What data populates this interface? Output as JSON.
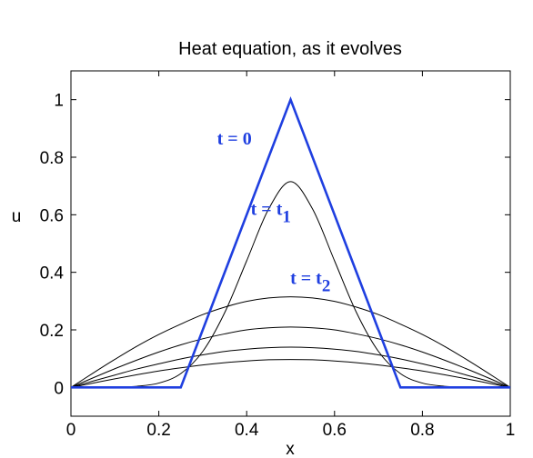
{
  "chart_data": {
    "type": "line",
    "title": "Heat equation, as it evolves",
    "xlabel": "x",
    "ylabel": "u",
    "xlim": [
      0,
      1
    ],
    "ylim": [
      -0.1,
      1.1
    ],
    "xticks": [
      0,
      0.2,
      0.4,
      0.6,
      0.8,
      1
    ],
    "yticks": [
      0,
      0.2,
      0.4,
      0.6,
      0.8,
      1
    ],
    "xtick_labels": [
      "0",
      "0.2",
      "0.4",
      "0.6",
      "0.8",
      "1"
    ],
    "ytick_labels": [
      "0",
      "0.2",
      "0.4",
      "0.6",
      "0.8",
      "1"
    ],
    "grid": false,
    "series": [
      {
        "color": "#1f3fe0",
        "x": [
          0,
          0.25,
          0.5,
          0.75,
          1
        ],
        "y": [
          0,
          0,
          1,
          0,
          0
        ]
      },
      {
        "color": "#000000",
        "x": [
          0,
          0.05,
          0.1,
          0.15,
          0.2,
          0.25,
          0.3,
          0.35,
          0.4,
          0.45,
          0.5,
          0.55,
          0.6,
          0.65,
          0.7,
          0.75,
          0.8,
          0.85,
          0.9,
          0.95,
          1
        ],
        "y": [
          0,
          0.0,
          0.001,
          0.004,
          0.015,
          0.048,
          0.125,
          0.26,
          0.44,
          0.62,
          0.715,
          0.62,
          0.44,
          0.26,
          0.125,
          0.048,
          0.015,
          0.004,
          0.001,
          0.0,
          0
        ]
      },
      {
        "color": "#000000",
        "x": [
          0,
          0.05,
          0.1,
          0.15,
          0.2,
          0.25,
          0.3,
          0.35,
          0.4,
          0.45,
          0.5,
          0.55,
          0.6,
          0.65,
          0.7,
          0.75,
          0.8,
          0.85,
          0.9,
          0.95,
          1
        ],
        "y": [
          0,
          0.0495,
          0.0975,
          0.143,
          0.184,
          0.22,
          0.253,
          0.279,
          0.299,
          0.311,
          0.315,
          0.311,
          0.299,
          0.279,
          0.253,
          0.22,
          0.184,
          0.143,
          0.0975,
          0.0495,
          0
        ]
      },
      {
        "color": "#000000",
        "x": [
          0,
          0.05,
          0.1,
          0.15,
          0.2,
          0.25,
          0.3,
          0.35,
          0.4,
          0.45,
          0.5,
          0.55,
          0.6,
          0.65,
          0.7,
          0.75,
          0.8,
          0.85,
          0.9,
          0.95,
          1
        ],
        "y": [
          0,
          0.033,
          0.065,
          0.095,
          0.123,
          0.148,
          0.169,
          0.186,
          0.2,
          0.207,
          0.21,
          0.207,
          0.2,
          0.186,
          0.169,
          0.148,
          0.123,
          0.095,
          0.065,
          0.033,
          0
        ]
      },
      {
        "color": "#000000",
        "x": [
          0,
          0.05,
          0.1,
          0.15,
          0.2,
          0.25,
          0.3,
          0.35,
          0.4,
          0.45,
          0.5,
          0.55,
          0.6,
          0.65,
          0.7,
          0.75,
          0.8,
          0.85,
          0.9,
          0.95,
          1
        ],
        "y": [
          0,
          0.022,
          0.043,
          0.064,
          0.082,
          0.099,
          0.113,
          0.125,
          0.133,
          0.138,
          0.14,
          0.138,
          0.133,
          0.125,
          0.113,
          0.099,
          0.082,
          0.064,
          0.043,
          0.022,
          0
        ]
      },
      {
        "color": "#000000",
        "x": [
          0,
          0.05,
          0.1,
          0.15,
          0.2,
          0.25,
          0.3,
          0.35,
          0.4,
          0.45,
          0.5,
          0.55,
          0.6,
          0.65,
          0.7,
          0.75,
          0.8,
          0.85,
          0.9,
          0.95,
          1
        ],
        "y": [
          0,
          0.015,
          0.03,
          0.044,
          0.057,
          0.068,
          0.078,
          0.086,
          0.092,
          0.096,
          0.097,
          0.096,
          0.092,
          0.086,
          0.078,
          0.068,
          0.057,
          0.044,
          0.03,
          0.015,
          0
        ]
      }
    ],
    "annotations": [
      {
        "text": "t = 0",
        "sub": "",
        "x": 0.372,
        "y": 0.845,
        "color": "#1f3fe0"
      },
      {
        "text": "t = t",
        "sub": "1",
        "x": 0.455,
        "y": 0.6,
        "color": "#1f3fe0"
      },
      {
        "text": "t = t",
        "sub": "2",
        "x": 0.545,
        "y": 0.36,
        "color": "#1f3fe0"
      }
    ]
  }
}
